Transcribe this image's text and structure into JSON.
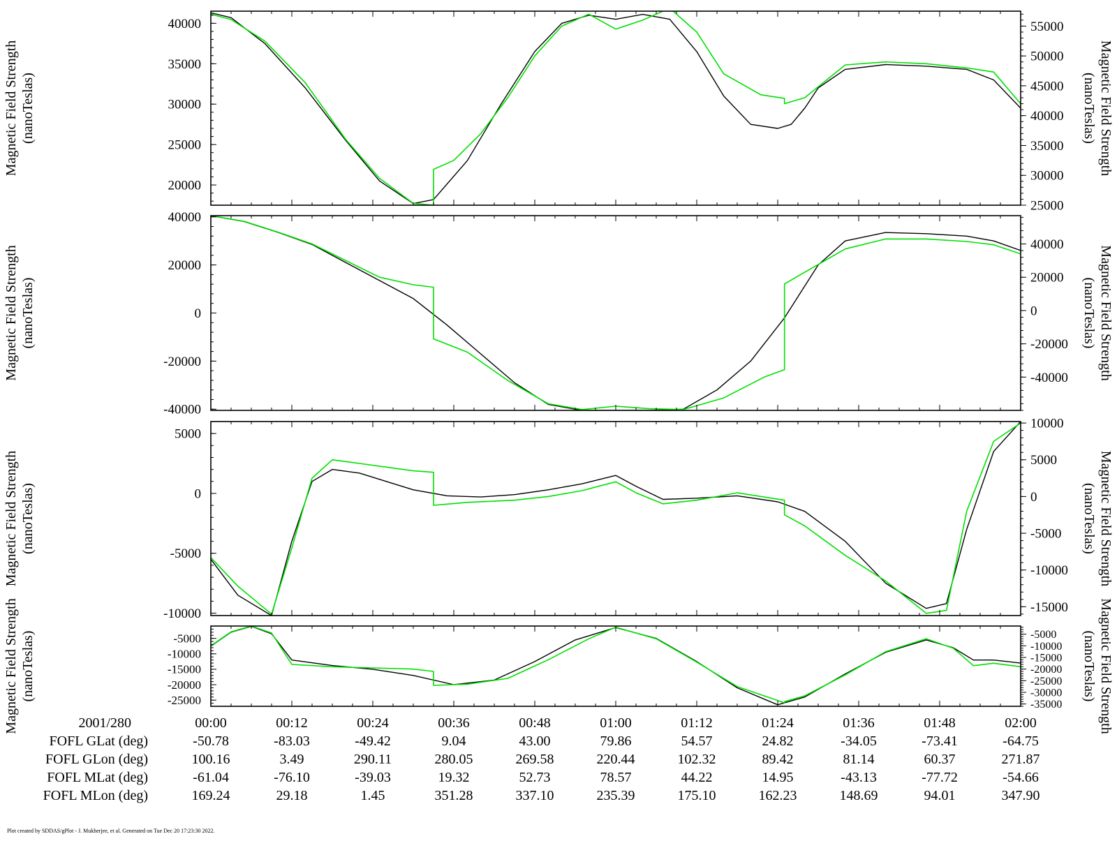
{
  "colors": {
    "trace_1": "#000000",
    "trace_2": "#00e000",
    "axes": "#000000",
    "background": "#ffffff"
  },
  "footer": "Plot created by SDDAS/gPlot - J. Mukherjee, et al.  Generated on Tue Dec 20 17:23:30 2022.",
  "ephemeris": {
    "date_label": "2001/280",
    "time_ticks": [
      "00:00",
      "00:12",
      "00:24",
      "00:36",
      "00:48",
      "01:00",
      "01:12",
      "01:24",
      "01:36",
      "01:48",
      "02:00"
    ],
    "rows": [
      {
        "label": "FOFL GLat (deg)",
        "values": [
          "-50.78",
          "-83.03",
          "-49.42",
          "9.04",
          "43.00",
          "79.86",
          "54.57",
          "24.82",
          "-34.05",
          "-73.41",
          "-64.75"
        ]
      },
      {
        "label": "FOFL GLon (deg)",
        "values": [
          "100.16",
          "3.49",
          "290.11",
          "280.05",
          "269.58",
          "220.44",
          "102.32",
          "89.42",
          "81.14",
          "60.37",
          "271.87"
        ]
      },
      {
        "label": "FOFL MLat (deg)",
        "values": [
          "-61.04",
          "-76.10",
          "-39.03",
          "19.32",
          "52.73",
          "78.57",
          "44.22",
          "14.95",
          "-43.13",
          "-77.72",
          "-54.66"
        ]
      },
      {
        "label": "FOFL MLon (deg)",
        "values": [
          "169.24",
          "29.18",
          "1.45",
          "351.28",
          "337.10",
          "235.39",
          "175.10",
          "162.23",
          "148.69",
          "94.01",
          "347.90"
        ]
      }
    ]
  },
  "chart_data": [
    {
      "type": "line",
      "x_unit": "minutes since 00:00 (2001/280)",
      "xlim": [
        0,
        120
      ],
      "left_ylabel": [
        "Magnetic Field Strength",
        "(nanoTeslas)"
      ],
      "right_ylabel": [
        "Magnetic Field Strength",
        "(nanoTeslas)"
      ],
      "left_ylim": [
        17500,
        41500
      ],
      "left_ticks": [
        20000,
        25000,
        30000,
        35000,
        40000
      ],
      "right_ylim": [
        25000,
        57500
      ],
      "right_ticks": [
        25000,
        30000,
        35000,
        40000,
        45000,
        50000,
        55000
      ],
      "series": [
        {
          "color": "#000000",
          "axis": "left",
          "x": [
            0,
            3,
            8,
            14,
            20,
            25,
            30,
            33,
            38,
            43,
            48,
            52,
            56,
            60,
            64,
            68,
            72,
            76,
            80,
            84,
            86,
            88,
            90,
            94,
            100,
            106,
            112,
            116,
            120
          ],
          "y": [
            41300,
            40700,
            37500,
            32000,
            25500,
            20500,
            17700,
            18200,
            23000,
            30000,
            36500,
            40000,
            41000,
            40500,
            41100,
            40500,
            36500,
            31000,
            27500,
            27000,
            27500,
            29500,
            32000,
            34300,
            34900,
            34700,
            34300,
            33000,
            29500
          ]
        },
        {
          "color": "#00e000",
          "axis": "right",
          "gap_after_x": 94,
          "x": [
            0,
            3,
            8,
            14,
            20,
            25,
            30,
            33,
            33,
            36,
            40,
            44,
            48,
            52,
            56,
            60,
            64,
            68,
            72,
            76,
            81.5,
            85,
            85,
            88,
            94,
            100,
            106,
            112,
            116,
            120
          ],
          "y": [
            57000,
            56100,
            52500,
            45500,
            36000,
            29500,
            25300,
            25000,
            31000,
            32500,
            37000,
            43000,
            50000,
            55000,
            57000,
            54500,
            56000,
            58000,
            54000,
            47000,
            43500,
            42900,
            42000,
            43000,
            48500,
            49000,
            48700,
            48000,
            47300,
            42000
          ]
        }
      ]
    },
    {
      "type": "line",
      "x_unit": "minutes since 00:00 (2001/280)",
      "xlim": [
        0,
        120
      ],
      "left_ylabel": [
        "Magnetic Field Strength",
        "(nanoTeslas)"
      ],
      "right_ylabel": [
        "Magnetic Field Strength",
        "(nanoTeslas)"
      ],
      "left_ylim": [
        -40500,
        40500
      ],
      "left_ticks": [
        -40000,
        -20000,
        0,
        20000,
        40000
      ],
      "right_ylim": [
        -60000,
        57000
      ],
      "right_ticks": [
        -40000,
        -20000,
        0,
        20000,
        40000
      ],
      "series": [
        {
          "color": "#000000",
          "axis": "left",
          "x": [
            0,
            5,
            10,
            15,
            20,
            25,
            30,
            35,
            40,
            45,
            50,
            55,
            60,
            65,
            70,
            75,
            80,
            85,
            90,
            94,
            100,
            106,
            112,
            116,
            120
          ],
          "y": [
            40500,
            38000,
            33500,
            28500,
            21000,
            13500,
            6000,
            -5000,
            -17000,
            -29000,
            -38000,
            -40500,
            -40500,
            -40500,
            -40000,
            -32000,
            -20000,
            -2000,
            20000,
            30000,
            33500,
            33000,
            32000,
            30000,
            26000
          ]
        },
        {
          "color": "#00e000",
          "axis": "right",
          "gap_after_x": 94,
          "x": [
            0,
            5,
            10,
            15,
            20,
            25,
            30,
            33,
            33,
            38,
            44,
            50,
            55,
            60,
            65,
            70,
            76,
            82,
            85,
            85,
            88,
            94,
            100,
            106,
            112,
            116,
            120
          ],
          "y": [
            57000,
            53500,
            47000,
            40000,
            30000,
            20000,
            15500,
            14000,
            -17000,
            -25000,
            -42000,
            -56000,
            -59500,
            -57500,
            -59000,
            -59500,
            -52500,
            -40000,
            -35500,
            16000,
            23000,
            37000,
            43000,
            43000,
            41500,
            39500,
            34000
          ]
        }
      ]
    },
    {
      "type": "line",
      "x_unit": "minutes since 00:00 (2001/280)",
      "xlim": [
        0,
        120
      ],
      "left_ylabel": [
        "Magnetic Field Strength",
        "(nanoTeslas)"
      ],
      "right_ylabel": [
        "Magnetic Field Strength",
        "(nanoTeslas)"
      ],
      "left_ylim": [
        -10200,
        6000
      ],
      "left_ticks": [
        -10000,
        -5000,
        0,
        5000
      ],
      "right_ylim": [
        -16200,
        10200
      ],
      "right_ticks": [
        -15000,
        -10000,
        -5000,
        0,
        5000,
        10000
      ],
      "series": [
        {
          "color": "#000000",
          "axis": "left",
          "x": [
            0,
            4,
            9,
            12,
            15,
            18,
            22,
            26,
            30,
            35,
            40,
            45,
            50,
            55,
            60,
            63,
            67,
            72,
            78,
            84,
            88,
            94,
            100,
            106,
            109,
            112,
            116,
            120
          ],
          "y": [
            -5500,
            -8500,
            -10200,
            -4000,
            1000,
            2000,
            1700,
            1000,
            300,
            -200,
            -300,
            -100,
            300,
            800,
            1500,
            600,
            -500,
            -400,
            -200,
            -700,
            -1500,
            -4000,
            -7500,
            -9600,
            -9200,
            -3000,
            3500,
            6000
          ]
        },
        {
          "color": "#00e000",
          "axis": "right",
          "gap_after_x": 94,
          "x": [
            0,
            4,
            9,
            12,
            15,
            18,
            22,
            26,
            30,
            33,
            33,
            38,
            45,
            50,
            55,
            60,
            63,
            67,
            72,
            78,
            85,
            85,
            88,
            94,
            100,
            106,
            109,
            112,
            116,
            120
          ],
          "y": [
            -8300,
            -12200,
            -16000,
            -7000,
            2500,
            5000,
            4500,
            4000,
            3500,
            3300,
            -1200,
            -800,
            -500,
            0,
            800,
            2000,
            500,
            -1000,
            -500,
            500,
            -500,
            -2500,
            -4000,
            -8000,
            -11500,
            -15900,
            -15500,
            -2000,
            7500,
            10000
          ]
        }
      ]
    },
    {
      "type": "line",
      "x_unit": "minutes since 00:00 (2001/280)",
      "xlim": [
        0,
        120
      ],
      "left_ylabel": [
        "Magnetic Field Strength",
        "(nanoTeslas)"
      ],
      "right_ylabel": [
        "Magnetic Field Strength",
        "(nanoTeslas)"
      ],
      "left_ylim": [
        -27000,
        -1000
      ],
      "left_ticks": [
        -25000,
        -20000,
        -15000,
        -10000,
        -5000
      ],
      "right_ylim": [
        -36000,
        -1500
      ],
      "right_ticks": [
        -35000,
        -30000,
        -25000,
        -20000,
        -15000,
        -10000,
        -5000
      ],
      "series": [
        {
          "color": "#000000",
          "axis": "left",
          "x": [
            0,
            3,
            6,
            9,
            12,
            18,
            24,
            30,
            36,
            42,
            48,
            54,
            60,
            66,
            72,
            78,
            84,
            88,
            94,
            100,
            106,
            110,
            113,
            116,
            120
          ],
          "y": [
            -7500,
            -3000,
            -1100,
            -3500,
            -12000,
            -13800,
            -15000,
            -17000,
            -20000,
            -18500,
            -12500,
            -5500,
            -1500,
            -5000,
            -12500,
            -21000,
            -26500,
            -24000,
            -16500,
            -9500,
            -5500,
            -8000,
            -12000,
            -12000,
            -13000
          ]
        },
        {
          "color": "#00e000",
          "axis": "right",
          "gap_after_x": 94,
          "x": [
            0,
            3,
            6,
            9,
            12,
            18,
            24,
            30,
            33,
            33,
            38,
            44,
            50,
            56,
            60,
            66,
            72,
            78,
            85,
            85,
            88,
            94,
            100,
            106,
            110,
            113,
            116,
            120
          ],
          "y": [
            -10000,
            -4000,
            -1500,
            -4500,
            -18000,
            -19000,
            -19500,
            -20000,
            -21000,
            -27000,
            -26500,
            -24000,
            -16000,
            -7000,
            -2000,
            -7000,
            -17000,
            -27500,
            -34500,
            -34000,
            -31500,
            -22500,
            -12500,
            -7000,
            -11000,
            -18500,
            -17500,
            -19000
          ]
        }
      ]
    }
  ]
}
